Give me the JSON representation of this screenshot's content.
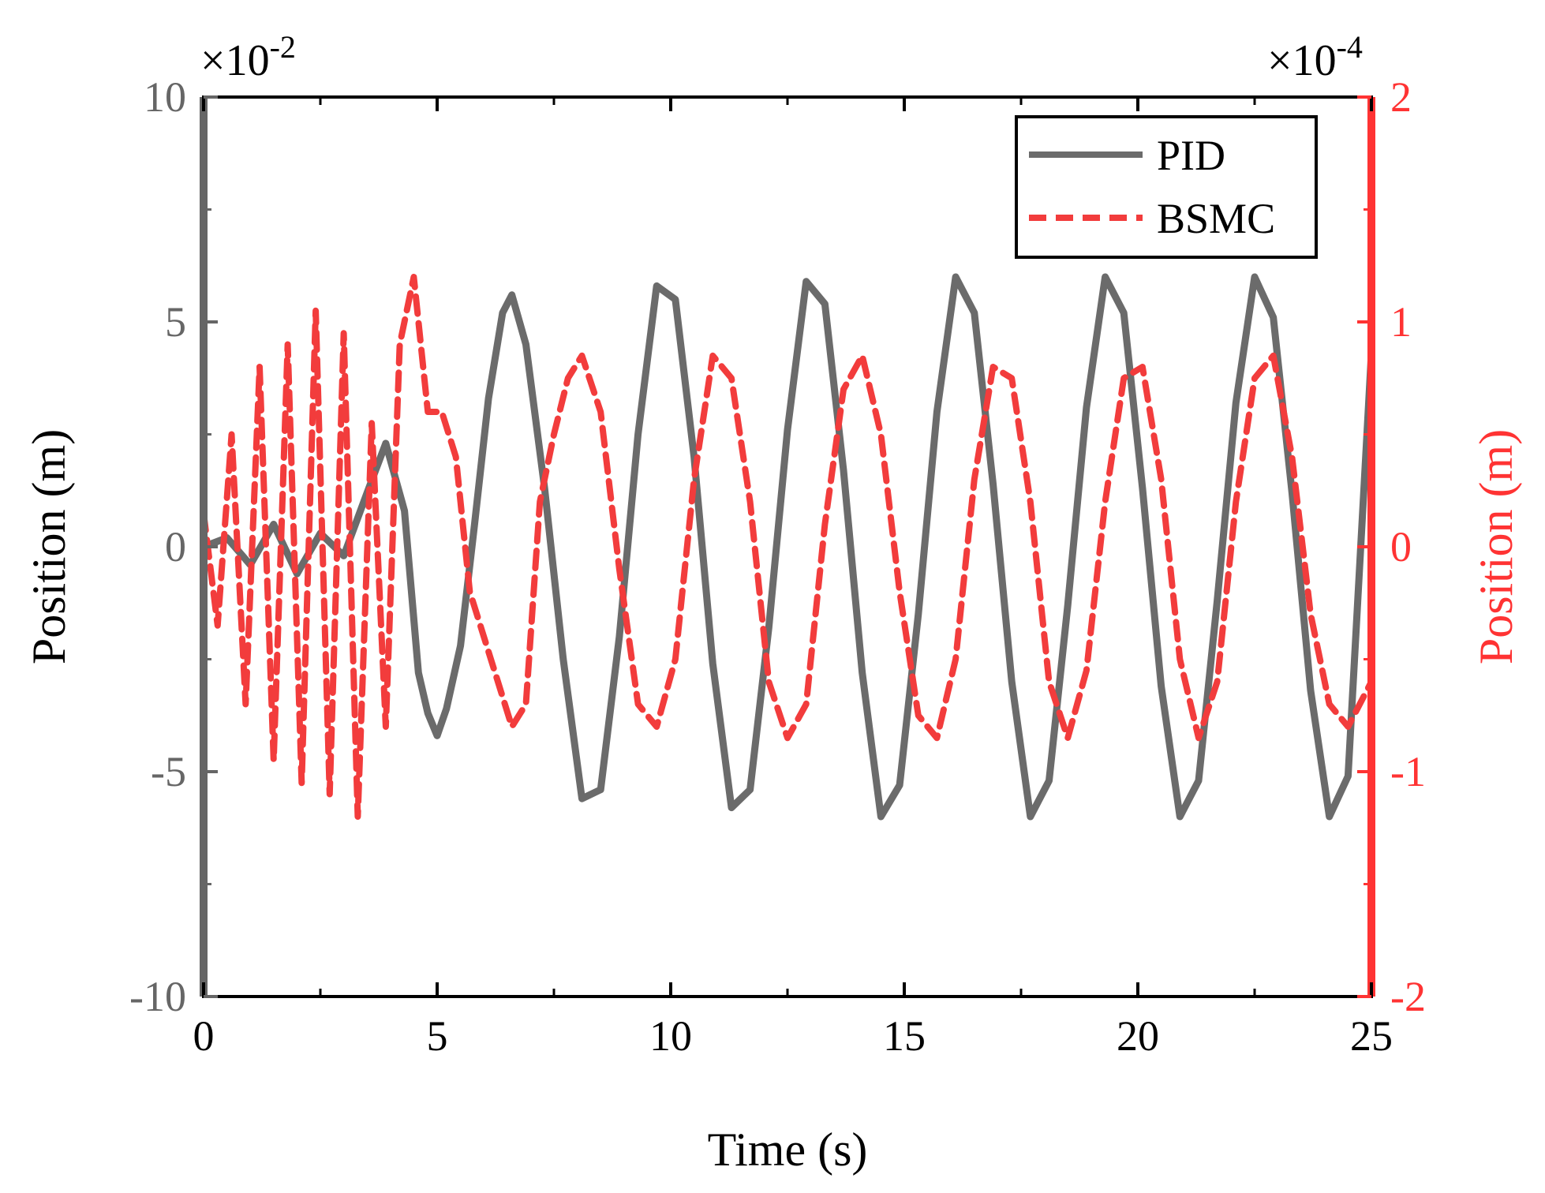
{
  "colors": {
    "left_axis": "#666666",
    "right_axis": "#ff3333",
    "pid_line": "#6b6b6b",
    "bsmc_line": "#f23c3c",
    "frame": "#000000",
    "background": "#ffffff"
  },
  "chart_data": {
    "type": "line",
    "title": "",
    "xlabel": "Time (s)",
    "ylabel_left": "Position (m)",
    "ylabel_right": "Position (m)",
    "xlim": [
      0,
      25
    ],
    "ylim_left": [
      -10,
      10
    ],
    "ylim_right": [
      -2,
      2
    ],
    "x_ticks": [
      0,
      5,
      10,
      15,
      20,
      25
    ],
    "x_tick_labels": [
      "0",
      "5",
      "10",
      "15",
      "20",
      "25"
    ],
    "y_left_ticks": [
      -10,
      -5,
      0,
      5,
      10
    ],
    "y_left_tick_labels": [
      "-10",
      "-5",
      "0",
      "5",
      "10"
    ],
    "y_right_ticks": [
      -2,
      -1,
      0,
      1,
      2
    ],
    "y_right_tick_labels": [
      "-2",
      "-1",
      "0",
      "1",
      "2"
    ],
    "y_left_exponent": "×10",
    "y_left_exponent_power": "-2",
    "y_right_exponent": "×10",
    "y_right_exponent_power": "-4",
    "grid": false,
    "legend": {
      "position": "top-right",
      "entries": [
        "PID",
        "BSMC"
      ]
    },
    "series": [
      {
        "name": "PID",
        "axis": "left",
        "style": "solid",
        "x": [
          0,
          0.5,
          1,
          1.5,
          2,
          2.5,
          3,
          3.5,
          3.9,
          4.3,
          4.6,
          4.8,
          5.0,
          5.2,
          5.5,
          5.8,
          6.1,
          6.4,
          6.6,
          6.9,
          7.3,
          7.7,
          8.1,
          8.5,
          8.9,
          9.3,
          9.7,
          10.1,
          10.5,
          10.9,
          11.3,
          11.7,
          12.1,
          12.5,
          12.9,
          13.3,
          13.7,
          14.1,
          14.5,
          14.9,
          15.3,
          15.7,
          16.1,
          16.5,
          16.9,
          17.3,
          17.7,
          18.1,
          18.5,
          18.9,
          19.3,
          19.7,
          20.1,
          20.5,
          20.9,
          21.3,
          21.7,
          22.1,
          22.5,
          22.9,
          23.3,
          23.7,
          24.1,
          24.5,
          25.0
        ],
        "y": [
          0,
          0.2,
          -0.4,
          0.5,
          -0.6,
          0.3,
          -0.2,
          1.2,
          2.3,
          0.8,
          -2.8,
          -3.7,
          -4.2,
          -3.6,
          -2.2,
          0.5,
          3.3,
          5.2,
          5.6,
          4.5,
          1.3,
          -2.5,
          -5.6,
          -5.4,
          -2.0,
          2.5,
          5.8,
          5.5,
          2.0,
          -2.6,
          -5.8,
          -5.4,
          -1.8,
          2.6,
          5.9,
          5.4,
          1.7,
          -2.8,
          -6.0,
          -5.3,
          -1.5,
          3.0,
          6.0,
          5.2,
          1.4,
          -3.0,
          -6.0,
          -5.2,
          -1.3,
          3.1,
          6.0,
          5.2,
          1.3,
          -3.1,
          -6.0,
          -5.2,
          -1.2,
          3.2,
          6.0,
          5.1,
          1.2,
          -3.2,
          -6.0,
          -5.1,
          4.3
        ]
      },
      {
        "name": "BSMC",
        "axis": "right",
        "style": "dashed",
        "x": [
          0,
          0.3,
          0.6,
          0.9,
          1.2,
          1.5,
          1.8,
          2.1,
          2.4,
          2.7,
          3.0,
          3.3,
          3.6,
          3.9,
          4.2,
          4.5,
          4.8,
          5.1,
          5.4,
          5.7,
          6.0,
          6.3,
          6.6,
          6.9,
          7.2,
          7.5,
          7.8,
          8.1,
          8.5,
          8.9,
          9.3,
          9.7,
          10.1,
          10.5,
          10.9,
          11.3,
          11.7,
          12.1,
          12.5,
          12.9,
          13.3,
          13.7,
          14.1,
          14.5,
          14.9,
          15.3,
          15.7,
          16.1,
          16.5,
          16.9,
          17.3,
          17.7,
          18.1,
          18.5,
          18.9,
          19.3,
          19.7,
          20.1,
          20.5,
          20.9,
          21.3,
          21.7,
          22.1,
          22.5,
          22.9,
          23.3,
          23.7,
          24.1,
          24.5,
          25.0
        ],
        "y": [
          0.15,
          -0.35,
          0.5,
          -0.7,
          0.8,
          -0.95,
          0.9,
          -1.05,
          1.05,
          -1.1,
          0.95,
          -1.2,
          0.55,
          -0.8,
          0.9,
          1.2,
          0.6,
          0.6,
          0.4,
          -0.2,
          -0.4,
          -0.6,
          -0.8,
          -0.7,
          0.2,
          0.5,
          0.75,
          0.85,
          0.6,
          -0.1,
          -0.7,
          -0.8,
          -0.5,
          0.3,
          0.85,
          0.75,
          0.2,
          -0.6,
          -0.85,
          -0.7,
          0.1,
          0.7,
          0.85,
          0.5,
          -0.2,
          -0.75,
          -0.85,
          -0.5,
          0.3,
          0.8,
          0.75,
          0.2,
          -0.6,
          -0.85,
          -0.55,
          0.2,
          0.75,
          0.8,
          0.3,
          -0.5,
          -0.85,
          -0.6,
          0.2,
          0.75,
          0.85,
          0.4,
          -0.3,
          -0.7,
          -0.8,
          -0.6
        ]
      }
    ]
  }
}
